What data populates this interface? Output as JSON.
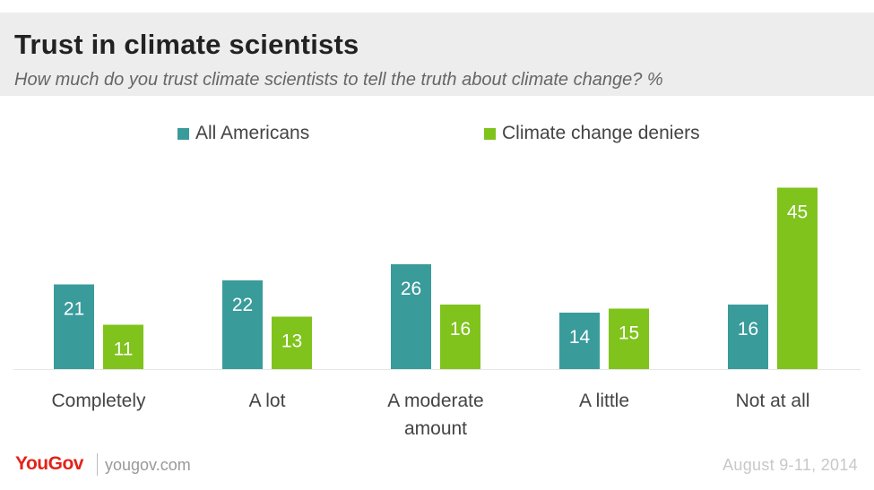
{
  "header": {
    "title": "Trust in climate scientists",
    "subtitle": "How much do you trust climate scientists to tell the truth about climate change? %"
  },
  "legend": [
    {
      "label": "All Americans",
      "color": "#3a9b9b"
    },
    {
      "label": "Climate change deniers",
      "color": "#7fc31c"
    }
  ],
  "chart_data": {
    "type": "bar",
    "title": "Trust in climate scientists",
    "subtitle": "How much do you trust climate scientists to tell the truth about climate change? %",
    "categories": [
      [
        "Completely"
      ],
      [
        "A lot"
      ],
      [
        "A moderate",
        "amount"
      ],
      [
        "A little"
      ],
      [
        "Not at all"
      ]
    ],
    "series": [
      {
        "name": "All Americans",
        "color": "#3a9b9b",
        "values": [
          21,
          22,
          26,
          14,
          16
        ]
      },
      {
        "name": "Climate change deniers",
        "color": "#7fc31c",
        "values": [
          11,
          13,
          16,
          15,
          45
        ]
      }
    ],
    "grid": false,
    "legend_position": "top"
  },
  "footer": {
    "brand": "YouGov",
    "site": "yougov.com",
    "date": "August 9-11, 2014",
    "brand_color": "#e2231a"
  }
}
